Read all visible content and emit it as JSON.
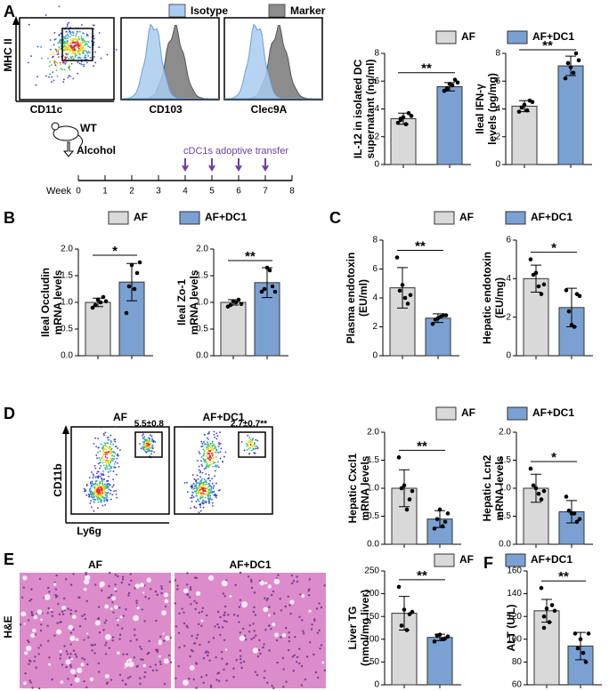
{
  "panels": [
    "A",
    "B",
    "C",
    "D",
    "E",
    "F"
  ],
  "flow": {
    "y_label": "MHC II",
    "x_label": "CD11c",
    "legend": [
      {
        "name": "Isotype",
        "color": "#a9cdf0"
      },
      {
        "name": "Marker",
        "color": "#8c8c8c"
      }
    ],
    "histograms": [
      "CD103",
      "Clec9A"
    ]
  },
  "timeline": {
    "mouse": "WT",
    "treatment": "Alcohol",
    "transfer": "cDC1s adoptive transfer",
    "axis_label": "Week",
    "weeks": [
      0,
      1,
      2,
      3,
      4,
      5,
      6,
      7,
      8
    ],
    "transfer_weeks": [
      4,
      5,
      6,
      7
    ]
  },
  "neutrophil": {
    "groups": [
      "AF",
      "AF+DC1"
    ],
    "gate_labels": [
      "5.5±0.8",
      "2.7±0.7**"
    ],
    "y_label": "CD11b",
    "x_label": "Ly6g"
  },
  "histology": {
    "groups": [
      "AF",
      "AF+DC1"
    ],
    "stain": "H&E"
  },
  "legends": [
    {
      "items": [
        {
          "name": "AF",
          "color": "#d9d9d9"
        },
        {
          "name": "AF+DC1",
          "color": "#7aa1d2"
        }
      ]
    },
    {
      "items": [
        {
          "name": "AF",
          "color": "#d9d9d9"
        },
        {
          "name": "AF+DC1",
          "color": "#7aa1d2"
        }
      ]
    },
    {
      "items": [
        {
          "name": "AF",
          "color": "#d9d9d9"
        },
        {
          "name": "AF+DC1",
          "color": "#7aa1d2"
        }
      ]
    },
    {
      "items": [
        {
          "name": "AF",
          "color": "#d9d9d9"
        },
        {
          "name": "AF+DC1",
          "color": "#7aa1d2"
        }
      ]
    },
    {
      "items": [
        {
          "name": "AF",
          "color": "#d9d9d9"
        },
        {
          "name": "AF+DC1",
          "color": "#7aa1d2"
        }
      ]
    }
  ],
  "chart_data": [
    {
      "type": "bar",
      "ylabel": [
        "IL-12 in isolated DC",
        "supernatant (ng/ml)"
      ],
      "colors": [
        "#d9d9d9",
        "#7aa1d2"
      ],
      "values": [
        3.3,
        5.6
      ],
      "errors": [
        0.4,
        0.3
      ],
      "points": [
        [
          3.0,
          3.4,
          3.7,
          3.2,
          2.9,
          3.5,
          3.3
        ],
        [
          5.3,
          5.8,
          6.1,
          5.5,
          5.7,
          5.9,
          5.4
        ]
      ],
      "ylim": [
        0,
        8
      ],
      "yticks": [
        0,
        2,
        4,
        6,
        8
      ],
      "significance": "**"
    },
    {
      "type": "bar",
      "ylabel": [
        "Ileal IFN-γ",
        "levels (pg/mg)"
      ],
      "colors": [
        "#d9d9d9",
        "#7aa1d2"
      ],
      "values": [
        4.2,
        7.1
      ],
      "errors": [
        0.4,
        0.7
      ],
      "points": [
        [
          3.8,
          4.3,
          4.6,
          4.1,
          3.9,
          4.5
        ],
        [
          6.2,
          7.0,
          8.0,
          7.3,
          6.6,
          7.5
        ]
      ],
      "ylim": [
        0,
        8
      ],
      "yticks": [
        0,
        2,
        4,
        6,
        8
      ],
      "significance": "**"
    },
    {
      "type": "bar",
      "ylabel": [
        "Ileal Occludin",
        "mRNA levels"
      ],
      "colors": [
        "#d9d9d9",
        "#7aa1d2"
      ],
      "values": [
        1.0,
        1.38
      ],
      "errors": [
        0.08,
        0.35
      ],
      "points": [
        [
          0.9,
          1.05,
          1.1,
          0.95,
          1.0,
          1.02
        ],
        [
          0.8,
          1.7,
          1.55,
          1.3,
          1.25,
          1.75
        ]
      ],
      "ylim": [
        0,
        2
      ],
      "yticks": [
        {
          "value": 0,
          "label": "0.0"
        },
        0.5,
        {
          "value": 1,
          "label": "1.0"
        },
        1.5,
        {
          "value": 2,
          "label": "2.0"
        }
      ],
      "significance": "*"
    },
    {
      "type": "bar",
      "ylabel": [
        "Ileal Zo-1",
        "mRNA levels"
      ],
      "colors": [
        "#d9d9d9",
        "#7aa1d2"
      ],
      "values": [
        1.0,
        1.37
      ],
      "errors": [
        0.05,
        0.28
      ],
      "points": [
        [
          0.92,
          1.02,
          1.05,
          0.95,
          1.0,
          0.97
        ],
        [
          1.2,
          1.65,
          1.3,
          1.25,
          1.6,
          1.2
        ]
      ],
      "ylim": [
        0,
        2
      ],
      "yticks": [
        {
          "value": 0,
          "label": "0.0"
        },
        0.5,
        {
          "value": 1,
          "label": "1.0"
        },
        1.5,
        {
          "value": 2,
          "label": "2.0"
        }
      ],
      "significance": "**"
    },
    {
      "type": "bar",
      "ylabel": [
        "Plasma endotoxin",
        "(EU/ml)"
      ],
      "colors": [
        "#d9d9d9",
        "#7aa1d2"
      ],
      "values": [
        4.7,
        2.6
      ],
      "errors": [
        1.4,
        0.3
      ],
      "points": [
        [
          6.8,
          4.9,
          3.6,
          4.5,
          4.0,
          4.2
        ],
        [
          2.2,
          2.6,
          2.8,
          2.5,
          2.7,
          2.8
        ]
      ],
      "ylim": [
        0,
        8
      ],
      "yticks": [
        0,
        2,
        4,
        6,
        8
      ],
      "significance": "**"
    },
    {
      "type": "bar",
      "ylabel": [
        "Hepatic endotoxin",
        "(EU/mg)"
      ],
      "colors": [
        "#d9d9d9",
        "#7aa1d2"
      ],
      "values": [
        4.0,
        2.5
      ],
      "errors": [
        0.7,
        1.0
      ],
      "points": [
        [
          5.0,
          4.3,
          3.2,
          4.2,
          3.6,
          3.7
        ],
        [
          3.4,
          1.6,
          3.2,
          2.3,
          1.5,
          3.1
        ]
      ],
      "ylim": [
        0,
        6
      ],
      "yticks": [
        0,
        2,
        4,
        6
      ],
      "significance": "*"
    },
    {
      "type": "bar",
      "ylabel": [
        "Hepatic Cxcl1",
        "mRNA levels"
      ],
      "colors": [
        "#d9d9d9",
        "#7aa1d2"
      ],
      "values": [
        1.0,
        0.45
      ],
      "errors": [
        0.33,
        0.15
      ],
      "points": [
        [
          1.55,
          1.05,
          0.8,
          1.0,
          0.62,
          0.95
        ],
        [
          0.28,
          0.62,
          0.4,
          0.45,
          0.32,
          0.55
        ]
      ],
      "ylim": [
        0,
        2
      ],
      "yticks": [
        {
          "value": 0,
          "label": "0.0"
        },
        0.5,
        {
          "value": 1,
          "label": "1.0"
        },
        1.5,
        {
          "value": 2,
          "label": "2.0"
        }
      ],
      "significance": "**"
    },
    {
      "type": "bar",
      "ylabel": [
        "Hepatic Lcn2",
        "mRNA levels"
      ],
      "colors": [
        "#d9d9d9",
        "#7aa1d2"
      ],
      "values": [
        1.0,
        0.58
      ],
      "errors": [
        0.25,
        0.2
      ],
      "points": [
        [
          1.35,
          1.0,
          0.8,
          1.05,
          0.9,
          0.95
        ],
        [
          0.85,
          0.55,
          0.4,
          0.6,
          0.55,
          0.45
        ]
      ],
      "ylim": [
        0,
        2
      ],
      "yticks": [
        {
          "value": 0,
          "label": "0.0"
        },
        0.5,
        {
          "value": 1,
          "label": "1.0"
        },
        1.5,
        {
          "value": 2,
          "label": "2.0"
        }
      ],
      "significance": "*"
    },
    {
      "type": "bar",
      "ylabel": [
        "Liver TG",
        "(nmol/mg liver)"
      ],
      "colors": [
        "#d9d9d9",
        "#7aa1d2"
      ],
      "values": [
        157,
        104
      ],
      "errors": [
        37,
        7
      ],
      "points": [
        [
          215,
          165,
          155,
          130,
          120,
          160
        ],
        [
          95,
          110,
          102,
          108,
          100,
          106
        ]
      ],
      "ylim": [
        0,
        250
      ],
      "yticks": [
        0,
        50,
        100,
        150,
        200,
        250
      ],
      "significance": "**"
    },
    {
      "type": "bar",
      "ylabel": [
        "ALT (U/L)"
      ],
      "colors": [
        "#d9d9d9",
        "#7aa1d2"
      ],
      "values": [
        125,
        94
      ],
      "errors": [
        10,
        12
      ],
      "points": [
        [
          145,
          127,
          130,
          110,
          115,
          125,
          120
        ],
        [
          105,
          100,
          80,
          92,
          88,
          105
        ]
      ],
      "ylim": [
        60,
        160
      ],
      "yticks": [
        60,
        80,
        100,
        120,
        140,
        160
      ],
      "significance": "**"
    }
  ]
}
